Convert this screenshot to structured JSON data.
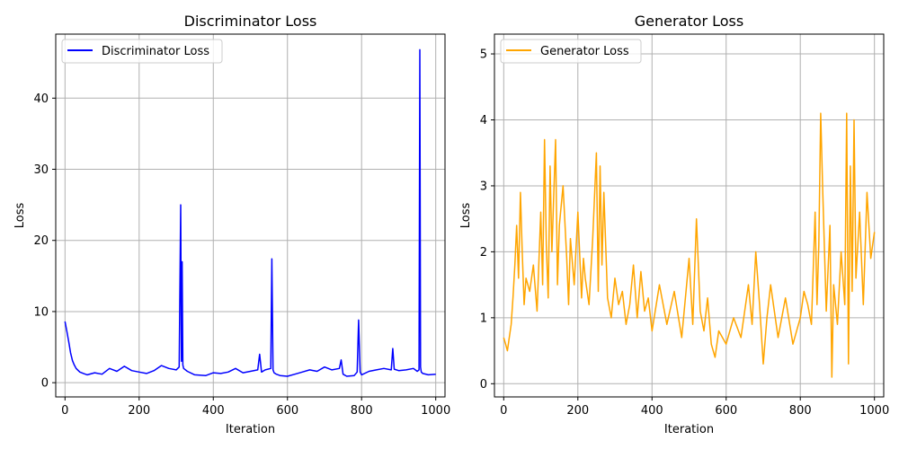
{
  "chart_data": [
    {
      "type": "line",
      "title": "Discriminator Loss",
      "xlabel": "Iteration",
      "ylabel": "Loss",
      "xlim": [
        -25,
        1025
      ],
      "ylim": [
        -2,
        49
      ],
      "xticks": [
        0,
        200,
        400,
        600,
        800,
        1000
      ],
      "yticks": [
        0,
        10,
        20,
        30,
        40
      ],
      "grid": true,
      "legend_position": "top-left",
      "series": [
        {
          "name": "Discriminator Loss",
          "color": "#0000ff",
          "x": [
            0,
            5,
            10,
            15,
            20,
            25,
            30,
            40,
            50,
            60,
            80,
            100,
            120,
            140,
            160,
            180,
            200,
            220,
            240,
            260,
            280,
            300,
            308,
            312,
            314,
            316,
            318,
            320,
            330,
            350,
            380,
            400,
            420,
            440,
            460,
            480,
            500,
            520,
            525,
            530,
            540,
            555,
            558,
            561,
            564,
            570,
            580,
            600,
            620,
            640,
            660,
            680,
            700,
            720,
            740,
            745,
            750,
            760,
            780,
            788,
            792,
            796,
            800,
            820,
            840,
            860,
            880,
            884,
            888,
            900,
            920,
            940,
            950,
            955,
            957,
            959,
            961,
            965,
            980,
            1000
          ],
          "y": [
            8.6,
            7.2,
            5.8,
            4.2,
            3.1,
            2.5,
            2.0,
            1.5,
            1.3,
            1.1,
            1.4,
            1.2,
            2.0,
            1.6,
            2.3,
            1.7,
            1.5,
            1.3,
            1.7,
            2.4,
            2.0,
            1.8,
            2.2,
            25.0,
            3.0,
            17.0,
            2.5,
            2.0,
            1.6,
            1.1,
            1.0,
            1.4,
            1.3,
            1.5,
            2.0,
            1.4,
            1.6,
            1.8,
            4.0,
            1.5,
            1.8,
            2.0,
            17.4,
            1.8,
            1.4,
            1.2,
            1.0,
            0.9,
            1.2,
            1.5,
            1.8,
            1.6,
            2.2,
            1.8,
            2.0,
            3.2,
            1.2,
            0.9,
            1.0,
            1.5,
            8.8,
            1.5,
            1.1,
            1.6,
            1.8,
            2.0,
            1.8,
            4.8,
            1.9,
            1.7,
            1.8,
            2.0,
            1.6,
            1.8,
            46.8,
            2.2,
            1.5,
            1.3,
            1.1,
            1.2
          ]
        }
      ]
    },
    {
      "type": "line",
      "title": "Generator Loss",
      "xlabel": "Iteration",
      "ylabel": "Loss",
      "xlim": [
        -25,
        1025
      ],
      "ylim": [
        -0.2,
        5.3
      ],
      "xticks": [
        0,
        200,
        400,
        600,
        800,
        1000
      ],
      "yticks": [
        0,
        1,
        2,
        3,
        4,
        5
      ],
      "grid": true,
      "legend_position": "top-left",
      "series": [
        {
          "name": "Generator Loss",
          "color": "#ffa500",
          "x": [
            0,
            5,
            10,
            15,
            20,
            25,
            30,
            35,
            40,
            45,
            50,
            55,
            60,
            70,
            80,
            90,
            100,
            105,
            110,
            115,
            120,
            125,
            130,
            140,
            145,
            150,
            160,
            170,
            175,
            180,
            190,
            200,
            210,
            215,
            220,
            230,
            240,
            250,
            255,
            260,
            265,
            270,
            280,
            290,
            300,
            310,
            320,
            330,
            340,
            350,
            360,
            370,
            380,
            390,
            400,
            420,
            440,
            460,
            480,
            500,
            510,
            520,
            530,
            540,
            550,
            560,
            570,
            580,
            600,
            620,
            640,
            660,
            670,
            680,
            690,
            700,
            710,
            720,
            740,
            760,
            780,
            800,
            810,
            820,
            830,
            840,
            845,
            850,
            855,
            860,
            870,
            880,
            885,
            890,
            900,
            910,
            920,
            925,
            930,
            935,
            940,
            945,
            950,
            960,
            970,
            980,
            990,
            1000
          ],
          "y": [
            0.7,
            0.6,
            0.5,
            0.7,
            0.9,
            1.3,
            1.8,
            2.4,
            1.6,
            2.9,
            2.0,
            1.2,
            1.6,
            1.4,
            1.8,
            1.1,
            2.6,
            1.5,
            3.7,
            2.1,
            1.3,
            3.3,
            2.0,
            3.7,
            1.5,
            2.4,
            3.0,
            1.9,
            1.2,
            2.2,
            1.5,
            2.6,
            1.3,
            1.9,
            1.6,
            1.2,
            2.2,
            3.5,
            1.4,
            3.3,
            1.8,
            2.9,
            1.3,
            1.0,
            1.6,
            1.2,
            1.4,
            0.9,
            1.2,
            1.8,
            1.0,
            1.7,
            1.1,
            1.3,
            0.8,
            1.5,
            0.9,
            1.4,
            0.7,
            1.9,
            0.9,
            2.5,
            1.1,
            0.8,
            1.3,
            0.6,
            0.4,
            0.8,
            0.6,
            1.0,
            0.7,
            1.5,
            0.9,
            2.0,
            1.2,
            0.3,
            1.0,
            1.5,
            0.7,
            1.3,
            0.6,
            1.0,
            1.4,
            1.2,
            0.9,
            2.6,
            1.2,
            2.1,
            4.1,
            3.0,
            1.1,
            2.4,
            0.1,
            1.5,
            0.9,
            2.0,
            1.2,
            4.1,
            0.3,
            3.3,
            1.4,
            4.0,
            1.6,
            2.6,
            1.2,
            2.9,
            1.9,
            2.3
          ]
        }
      ]
    }
  ]
}
